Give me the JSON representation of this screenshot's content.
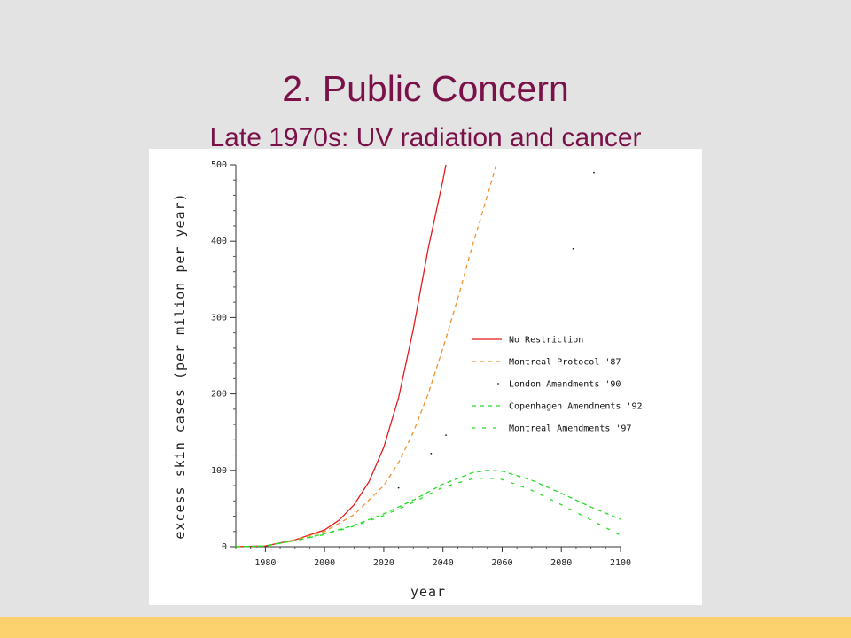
{
  "slide": {
    "title": "2. Public Concern",
    "subtitle": "Late 1970s: UV radiation and cancer"
  },
  "colors": {
    "background": "#e3e3e3",
    "title": "#7a1149",
    "footer": "#fcd26e"
  },
  "chart_data": {
    "type": "line",
    "title": "",
    "xlabel": "year",
    "ylabel": "excess skin cases (per milion per year)",
    "xlim": [
      1970,
      2100
    ],
    "ylim": [
      0,
      500
    ],
    "x_ticks": [
      1980,
      2000,
      2020,
      2040,
      2060,
      2080,
      2100
    ],
    "y_ticks": [
      0,
      100,
      200,
      300,
      400,
      500
    ],
    "legend_position": "right",
    "series": [
      {
        "name": "No Restriction",
        "color": "#e41a1c",
        "style": "solid",
        "x": [
          1970,
          1980,
          1990,
          2000,
          2005,
          2010,
          2015,
          2020,
          2025,
          2030,
          2035,
          2040,
          2041
        ],
        "y": [
          0,
          1,
          9,
          22,
          35,
          55,
          85,
          130,
          195,
          285,
          390,
          480,
          500
        ]
      },
      {
        "name": "Montreal Protocol '87",
        "color": "#f0922e",
        "style": "dashed",
        "x": [
          1970,
          1980,
          1990,
          2000,
          2010,
          2020,
          2025,
          2030,
          2035,
          2040,
          2045,
          2050,
          2055,
          2058
        ],
        "y": [
          0,
          1,
          9,
          20,
          42,
          80,
          110,
          150,
          200,
          260,
          325,
          395,
          460,
          500
        ]
      },
      {
        "name": "London Amendments '90",
        "color": "#222222",
        "style": "dotted",
        "x": [
          2025,
          2036,
          2041,
          2084,
          2091
        ],
        "y": [
          77,
          122,
          146,
          390,
          490
        ]
      },
      {
        "name": "Copenhagen Amendments '92",
        "color": "#22dd22",
        "style": "dashed",
        "x": [
          1970,
          1980,
          1990,
          2000,
          2010,
          2020,
          2030,
          2040,
          2050,
          2055,
          2060,
          2070,
          2080,
          2090,
          2100
        ],
        "y": [
          0,
          1,
          8,
          17,
          28,
          43,
          61,
          82,
          97,
          100,
          99,
          87,
          70,
          52,
          36
        ]
      },
      {
        "name": "Montreal Amendments '97",
        "color": "#22dd22",
        "style": "dashed-wide",
        "x": [
          1970,
          1980,
          1990,
          2000,
          2010,
          2020,
          2030,
          2040,
          2050,
          2055,
          2060,
          2070,
          2080,
          2090,
          2100
        ],
        "y": [
          0,
          1,
          8,
          16,
          27,
          41,
          58,
          78,
          89,
          90,
          88,
          74,
          55,
          35,
          15
        ]
      }
    ]
  }
}
